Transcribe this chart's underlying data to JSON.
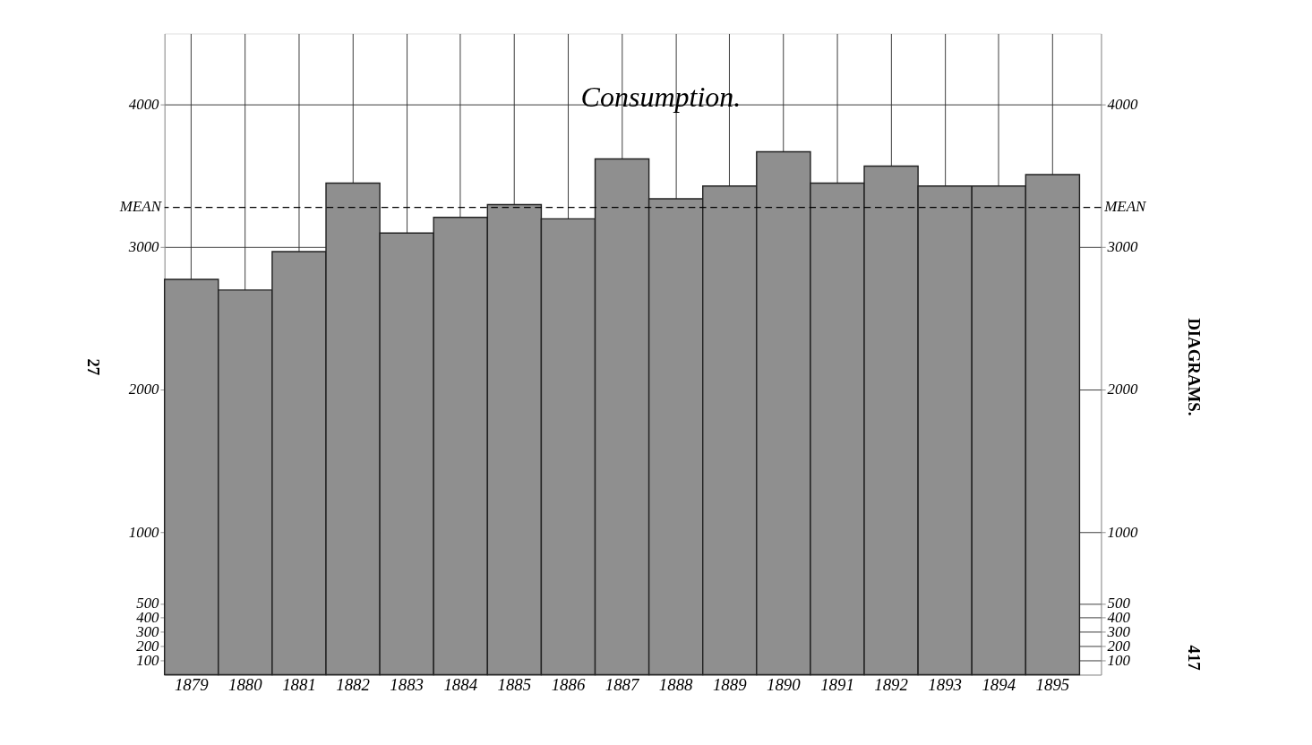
{
  "chart_data": {
    "type": "bar",
    "title": "Consumption.",
    "categories": [
      "1879",
      "1880",
      "1881",
      "1882",
      "1883",
      "1884",
      "1885",
      "1886",
      "1887",
      "1888",
      "1889",
      "1890",
      "1891",
      "1892",
      "1893",
      "1894",
      "1895"
    ],
    "values": [
      2775,
      2700,
      2970,
      3450,
      3100,
      3210,
      3300,
      3200,
      3620,
      3340,
      3430,
      3670,
      3450,
      3570,
      3430,
      3430,
      3510
    ],
    "color": "#8f8f8f",
    "ylim": [
      0,
      4500
    ],
    "yticks": [
      100,
      200,
      300,
      400,
      500,
      1000,
      2000,
      3000,
      4000
    ],
    "y2lim": [
      0,
      4500
    ],
    "y2ticks": [
      100,
      200,
      300,
      400,
      500,
      1000,
      2000,
      3000,
      4000
    ],
    "ref_lines": [
      {
        "axis": "y",
        "value": 3280,
        "label": "MEAN",
        "line_style": "dashed",
        "color": "#000000"
      }
    ],
    "grid": true,
    "annotations": [
      "27",
      "DIAGRAMS.",
      "417"
    ]
  }
}
